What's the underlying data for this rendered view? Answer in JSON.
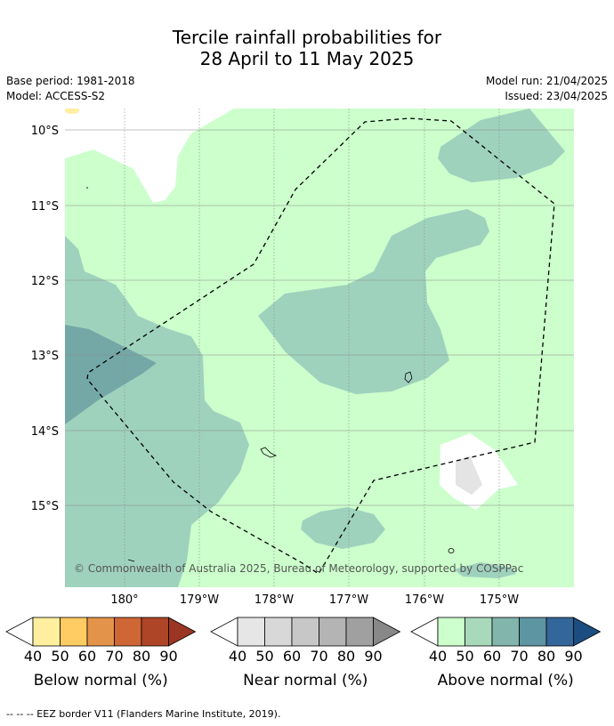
{
  "title": {
    "line1": "Tercile rainfall probabilities for",
    "line2": "28 April to 11 May 2025"
  },
  "meta": {
    "base_period": "Base period: 1981-2018",
    "model": "Model: ACCESS-S2",
    "model_run": "Model run: 21/04/2025",
    "issued": "Issued: 23/04/2025"
  },
  "map": {
    "lat_labels": [
      "10°S",
      "11°S",
      "12°S",
      "13°S",
      "14°S",
      "15°S"
    ],
    "lon_labels": [
      "180°",
      "179°W",
      "178°W",
      "177°W",
      "176°W",
      "175°W"
    ],
    "copyright": "© Commonwealth of Australia 2025, Bureau of Meteorology, supported by COSPPac",
    "colors": {
      "ocean_low": "#ccffcc",
      "above_50": "#9fd2bd",
      "above_60": "#74a8a6",
      "near_normal": "#e4e4e4",
      "no_signal": "#ffffff"
    }
  },
  "colorbars": [
    {
      "label": "Below normal (%)",
      "ticks": [
        "40",
        "50",
        "60",
        "70",
        "80",
        "90"
      ],
      "colors": [
        "#ffef9f",
        "#ffcb63",
        "#e4944a",
        "#ce6636",
        "#ad4526",
        "#9b3622"
      ]
    },
    {
      "label": "Near normal (%)",
      "ticks": [
        "40",
        "50",
        "60",
        "70",
        "80",
        "90"
      ],
      "colors": [
        "#e6e6e6",
        "#d8d8d8",
        "#c7c7c7",
        "#b4b4b4",
        "#a0a0a0",
        "#888888"
      ]
    },
    {
      "label": "Above normal (%)",
      "ticks": [
        "40",
        "50",
        "60",
        "70",
        "80",
        "90"
      ],
      "colors": [
        "#ccffcc",
        "#a9d9bb",
        "#82b5ac",
        "#5e95a2",
        "#33669a",
        "#1c4d80"
      ]
    }
  ],
  "footer": {
    "eez_note": "--  --  -- EEZ border V11 (Flanders Marine Institute, 2019)."
  }
}
